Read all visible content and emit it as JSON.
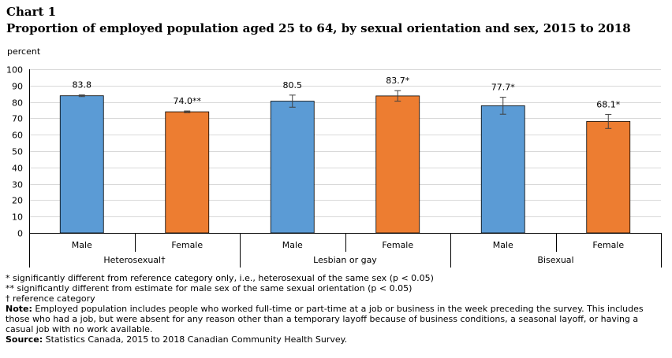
{
  "heading": {
    "label": "Chart 1",
    "title": "Proportion of employed population  aged 25 to 64, by sexual orientation and sex, 2015 to 2018"
  },
  "chart_data": {
    "type": "bar",
    "ylabel": "percent",
    "ylim": [
      0,
      100
    ],
    "ytick_step": 10,
    "grid": true,
    "groups": [
      "Heterosexual†",
      "Lesbian or gay",
      "Bisexual"
    ],
    "bars": [
      {
        "group": "Heterosexual†",
        "category": "Male",
        "value": 83.8,
        "label": "83.8",
        "err_low": 83.3,
        "err_high": 84.3,
        "color": "#5b9bd5"
      },
      {
        "group": "Heterosexual†",
        "category": "Female",
        "value": 74.0,
        "label": "74.0**",
        "err_low": 73.5,
        "err_high": 74.5,
        "color": "#ed7d31"
      },
      {
        "group": "Lesbian or gay",
        "category": "Male",
        "value": 80.5,
        "label": "80.5",
        "err_low": 76.8,
        "err_high": 84.2,
        "color": "#5b9bd5"
      },
      {
        "group": "Lesbian or gay",
        "category": "Female",
        "value": 83.7,
        "label": "83.7*",
        "err_low": 80.5,
        "err_high": 86.9,
        "color": "#ed7d31"
      },
      {
        "group": "Bisexual",
        "category": "Male",
        "value": 77.7,
        "label": "77.7*",
        "err_low": 72.5,
        "err_high": 82.9,
        "color": "#5b9bd5"
      },
      {
        "group": "Bisexual",
        "category": "Female",
        "value": 68.1,
        "label": "68.1*",
        "err_low": 63.8,
        "err_high": 72.4,
        "color": "#ed7d31"
      }
    ]
  },
  "notes": {
    "note1": "* significantly different from reference category only, i.e., heterosexual of the same sex (p < 0.05)",
    "note2": "** significantly different from estimate for male sex of the same sexual orientation (p < 0.05)",
    "note3": "† reference category",
    "note_label": "Note:",
    "note_text": " Employed population includes people who worked full-time or part-time at a job or business in the week preceding the survey. This includes those who had a job, but were absent for any reason other than a temporary layoff because of business conditions, a seasonal layoff, or having a casual job with no work available.",
    "source_label": "Source:",
    "source_text": " Statistics Canada, 2015 to 2018 Canadian Community Health Survey."
  }
}
